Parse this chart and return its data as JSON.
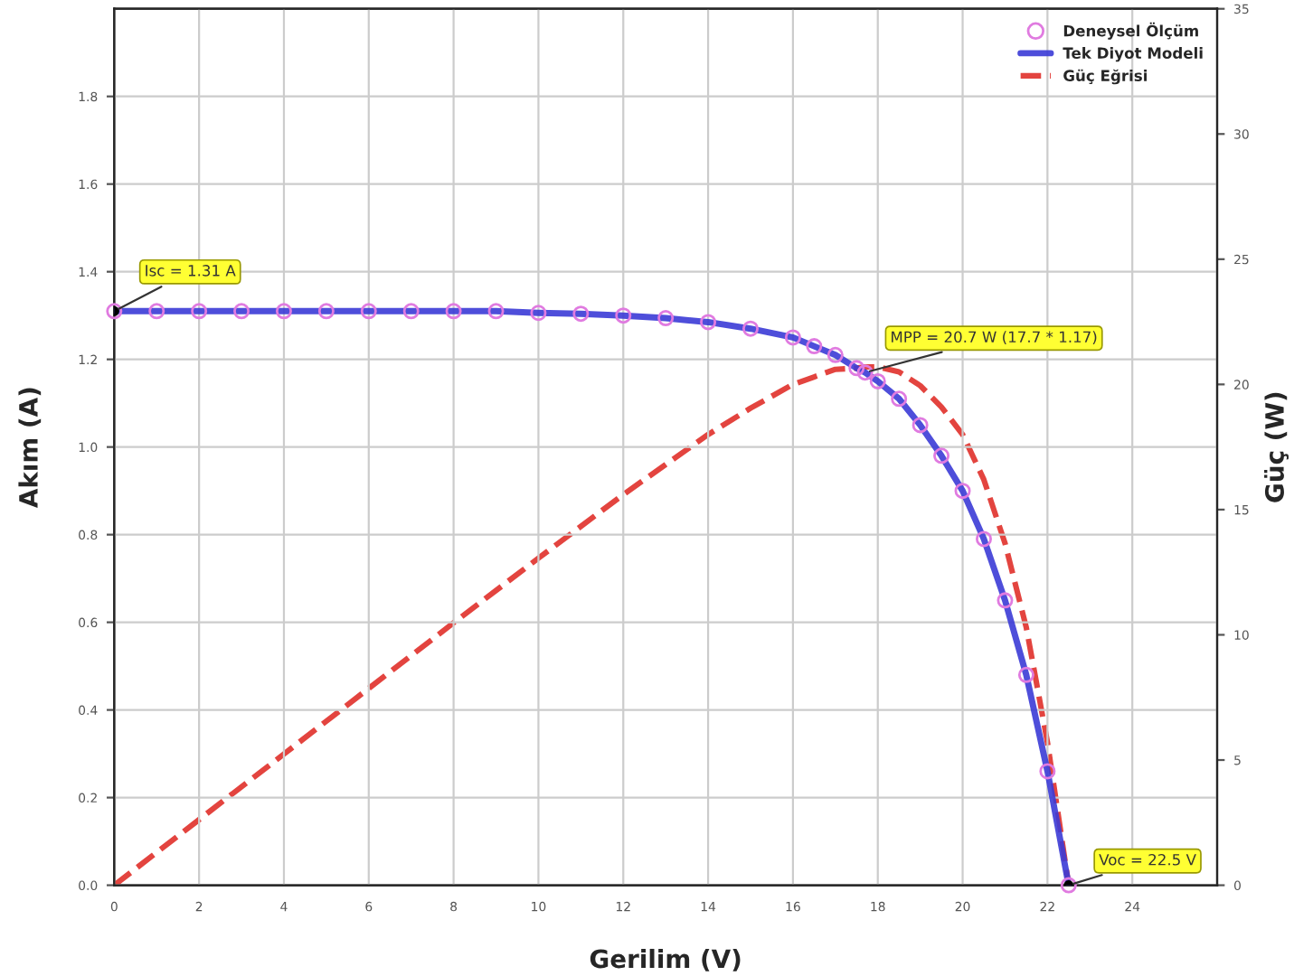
{
  "chart_data": {
    "type": "line",
    "xlabel": "Gerilim (V)",
    "ylabel": "Akım (A)",
    "y2label": "Güç (W)",
    "xlim": [
      0,
      26
    ],
    "xticks": [
      0,
      2,
      4,
      6,
      8,
      10,
      12,
      14,
      16,
      18,
      20,
      22,
      24
    ],
    "ylim": [
      0,
      2.0
    ],
    "yticks": [
      {
        "value": 0,
        "label": "0.0"
      },
      {
        "value": 0.2,
        "label": "0.2"
      },
      {
        "value": 0.4,
        "label": "0.4"
      },
      {
        "value": 0.6,
        "label": "0.6"
      },
      {
        "value": 0.8,
        "label": "0.8"
      },
      {
        "value": 1.0,
        "label": "1.0"
      },
      {
        "value": 1.2,
        "label": "1.2"
      },
      {
        "value": 1.4,
        "label": "1.4"
      },
      {
        "value": 1.6,
        "label": "1.6"
      },
      {
        "value": 1.8,
        "label": "1.8"
      }
    ],
    "y2lim": [
      0,
      35
    ],
    "y2ticks": [
      0,
      5,
      10,
      15,
      20,
      25,
      30,
      35
    ],
    "grid": true,
    "legend": "top right",
    "series": [
      {
        "name": "Deneysel Ölçüm",
        "type": "scatter",
        "marker": "circle",
        "color": "#e07be0",
        "x": [
          0,
          1,
          2,
          3,
          4,
          5,
          6,
          7,
          8,
          9,
          10,
          11,
          12,
          13,
          14,
          15,
          16,
          16.5,
          17,
          17.5,
          17.7,
          18,
          18.5,
          19,
          19.5,
          20,
          20.5,
          21,
          21.5,
          22,
          22.5
        ],
        "values": [
          1.31,
          1.31,
          1.31,
          1.31,
          1.31,
          1.31,
          1.31,
          1.31,
          1.31,
          1.31,
          1.306,
          1.304,
          1.3,
          1.294,
          1.285,
          1.27,
          1.25,
          1.23,
          1.21,
          1.18,
          1.17,
          1.15,
          1.11,
          1.05,
          0.98,
          0.9,
          0.79,
          0.65,
          0.48,
          0.26,
          0
        ]
      },
      {
        "name": "Tek Diyot Modeli",
        "line_style": "solid",
        "color": "#3b3bd6",
        "x": [
          0,
          1,
          2,
          3,
          4,
          5,
          6,
          7,
          8,
          9,
          10,
          11,
          12,
          13,
          14,
          15,
          16,
          16.5,
          17,
          17.5,
          17.7,
          18,
          18.5,
          19,
          19.5,
          20,
          20.5,
          21,
          21.5,
          22,
          22.5
        ],
        "values": [
          1.31,
          1.31,
          1.31,
          1.31,
          1.31,
          1.31,
          1.31,
          1.31,
          1.31,
          1.31,
          1.306,
          1.304,
          1.3,
          1.294,
          1.285,
          1.27,
          1.25,
          1.23,
          1.21,
          1.18,
          1.17,
          1.15,
          1.11,
          1.05,
          0.98,
          0.9,
          0.79,
          0.65,
          0.48,
          0.26,
          0
        ]
      },
      {
        "name": "Güç Eğrisi",
        "type": "line",
        "line_style": "dashed",
        "axis": "y2",
        "color": "#e0302a",
        "x": [
          0,
          2,
          4,
          6,
          8,
          10,
          12,
          13,
          14,
          15,
          16,
          16.5,
          17,
          17.5,
          17.7,
          18,
          18.5,
          19,
          19.5,
          20,
          20.5,
          21,
          21.5,
          22,
          22.5
        ],
        "values": [
          0,
          2.62,
          5.24,
          7.86,
          10.48,
          13.06,
          15.6,
          16.8,
          18.0,
          19.05,
          20.0,
          20.3,
          20.6,
          20.65,
          20.7,
          20.7,
          20.5,
          19.95,
          19.1,
          18.0,
          16.2,
          13.65,
          10.3,
          5.7,
          0
        ]
      },
      {
        "type": "scatter",
        "marker": "circle",
        "color": "#000000",
        "x": [
          0,
          22.5
        ],
        "values": [
          1.31,
          0
        ]
      }
    ],
    "annotations": [
      {
        "text": "Isc = 1.31 A",
        "x": 0,
        "y": 1.31
      },
      {
        "text": "MPP = 20.7 W (17.7 * 1.17)",
        "x": 17.7,
        "y": 1.17
      },
      {
        "text": "Voc = 22.5 V",
        "x": 22.5,
        "y": 0
      }
    ]
  }
}
